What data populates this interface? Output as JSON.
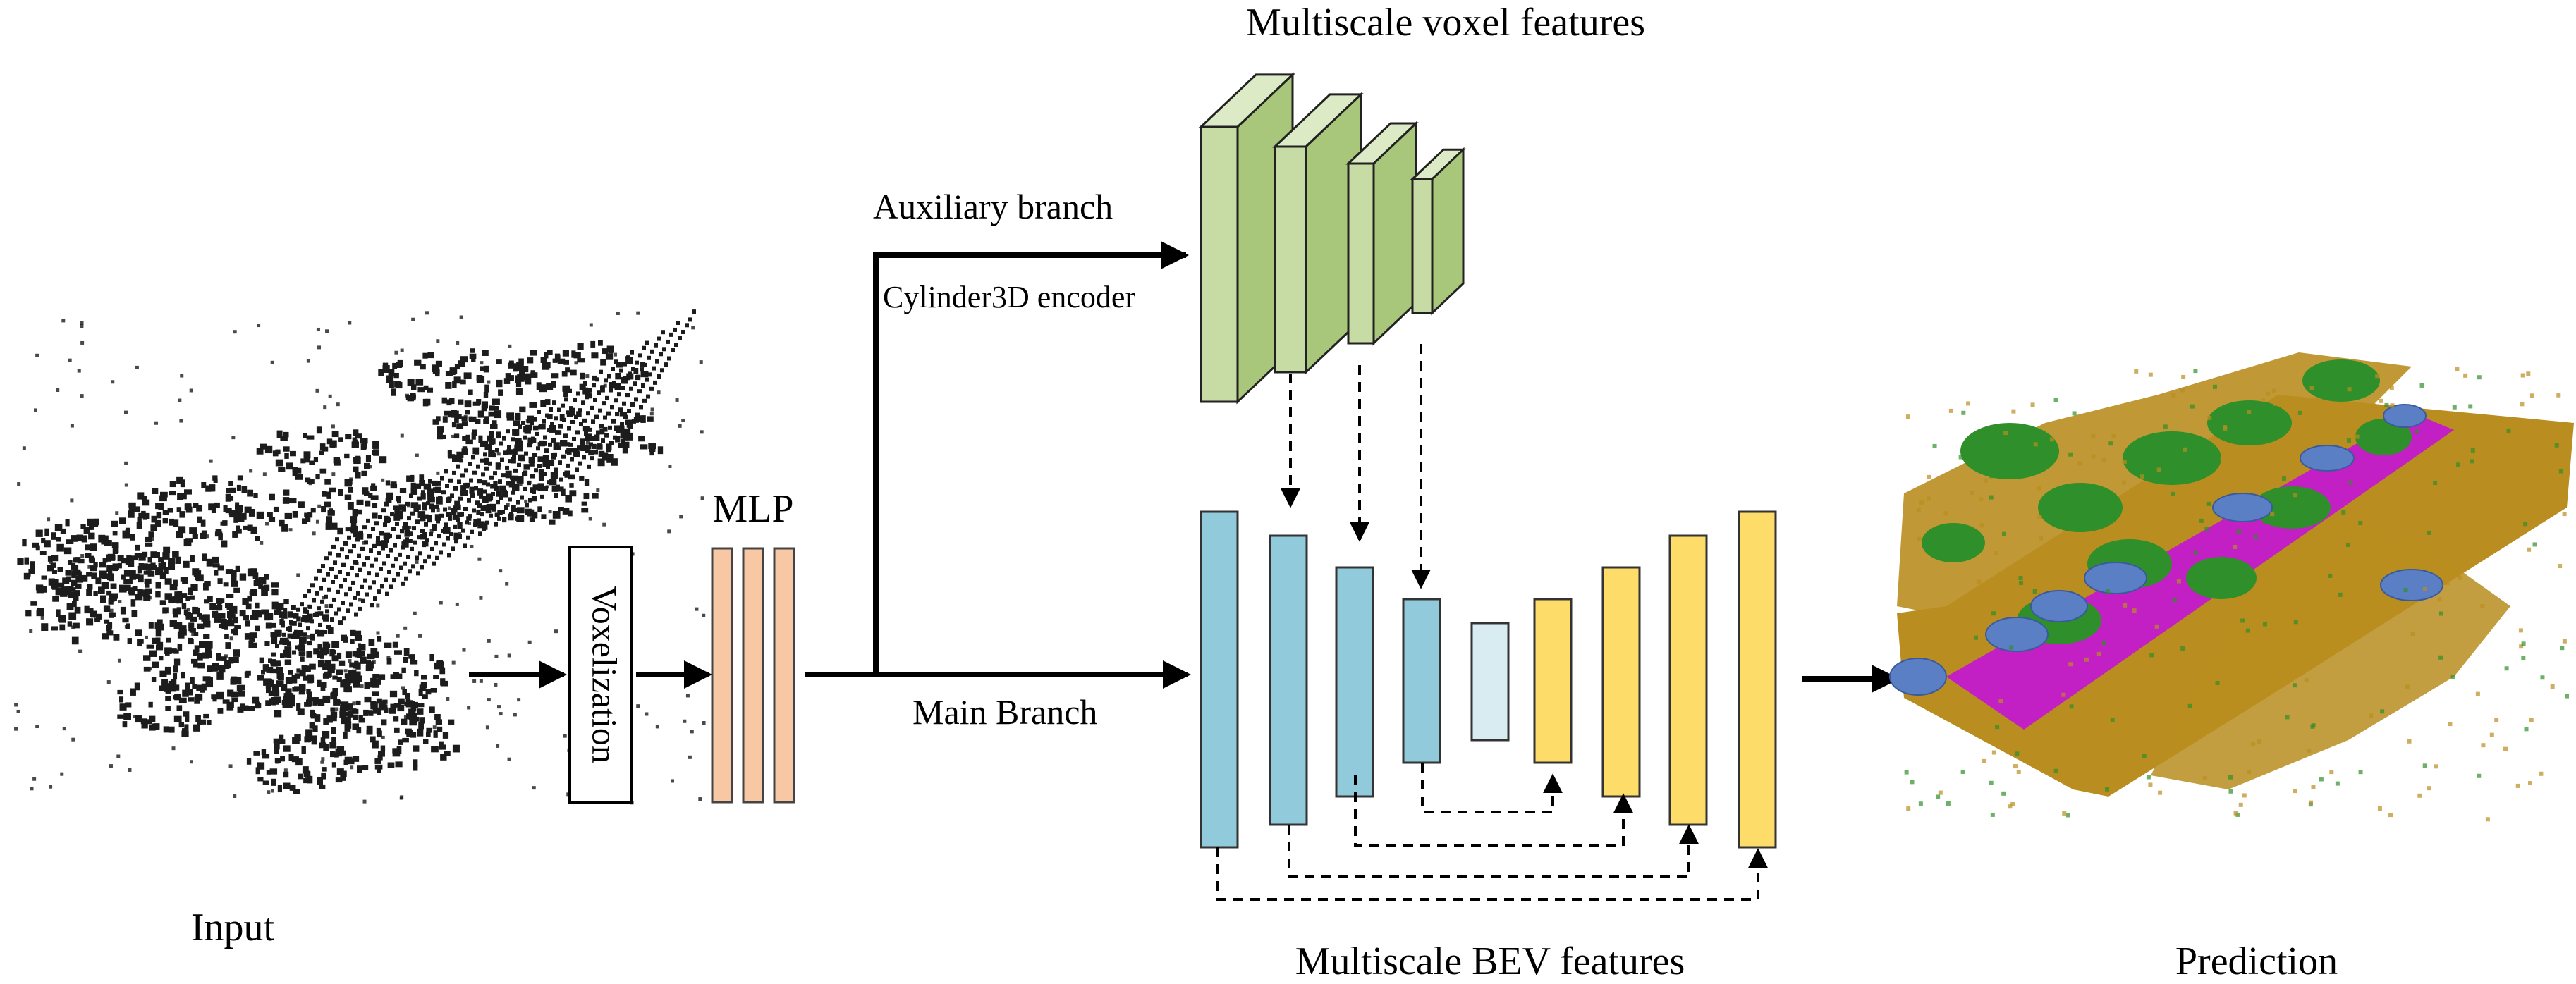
{
  "labels": {
    "input": "Input",
    "voxelization": "Voxelization",
    "mlp": "MLP",
    "auxiliary_branch": "Auxiliary branch",
    "encoder": "Cylinder3D encoder",
    "main_branch": "Main Branch",
    "voxel_features": "Multiscale voxel features",
    "bev_features": "Multiscale BEV features",
    "prediction": "Prediction"
  },
  "colors": {
    "point_cloud": "#1c1c1c",
    "mlp": "#f8c7a4",
    "voxel_front": "#a9c77b",
    "voxel_side": "#c6dca4",
    "voxel_top": "#dcebc6",
    "bev_encoder": "#90cadb",
    "bev_bottleneck": "#d8ecf2",
    "bev_decoder": "#fedc6a",
    "pred_road": "#c21fc4",
    "pred_vegetation": "#2f8f2a",
    "pred_terrain": "#b98d1f",
    "pred_car": "#5a7fc4"
  }
}
